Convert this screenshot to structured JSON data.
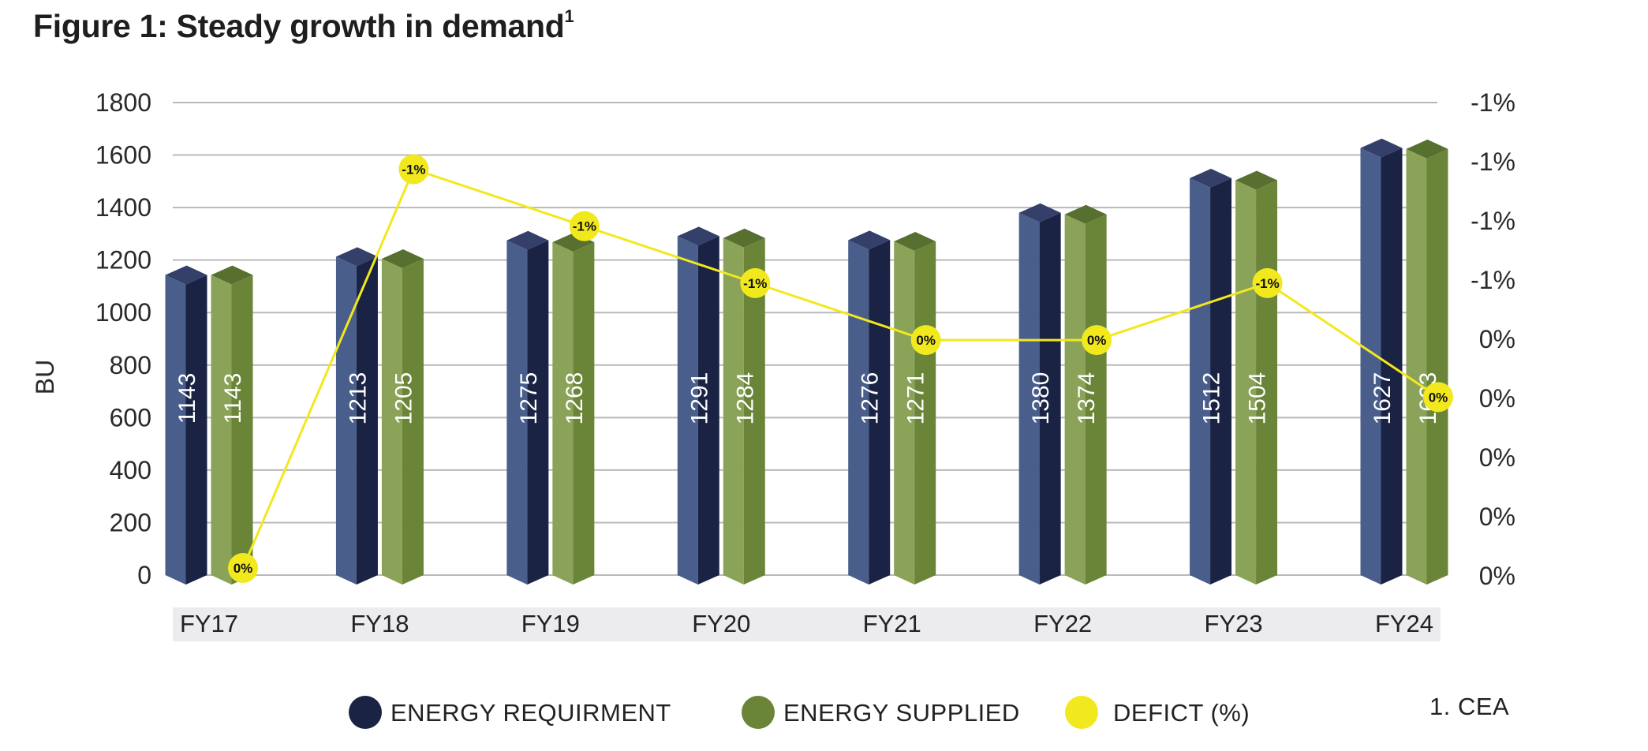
{
  "header": {
    "title": "Figure 1: Steady growth in demand",
    "title_sup": "1"
  },
  "footnote": "1. CEA",
  "chart_data": {
    "type": "bar",
    "title": "Figure 1: Steady growth in demand",
    "categories": [
      "FY17",
      "FY18",
      "FY19",
      "FY20",
      "FY21",
      "FY22",
      "FY23",
      "FY24"
    ],
    "ylabel": "BU",
    "ylim": [
      0,
      1800
    ],
    "yticks": [
      0,
      200,
      400,
      600,
      800,
      1000,
      1200,
      1400,
      1600,
      1800
    ],
    "y2_tick_labels": [
      "0%",
      "0%",
      "0%",
      "0%",
      "0%",
      "-1%",
      "-1%",
      "-1%",
      "-1%"
    ],
    "grid": true,
    "legend_position": "bottom",
    "series": [
      {
        "name": "ENERGY REQUIRMENT",
        "type": "bar",
        "color": "#4a5e8c",
        "values": [
          1143,
          1213,
          1275,
          1291,
          1276,
          1380,
          1512,
          1627
        ]
      },
      {
        "name": "ENERGY SUPPLIED",
        "type": "bar",
        "color": "#8aa359",
        "values": [
          1143,
          1205,
          1268,
          1284,
          1271,
          1374,
          1504,
          1623
        ]
      },
      {
        "name": "DEFICT (%)",
        "type": "line",
        "axis": "secondary",
        "color": "#f2e81e",
        "values": [
          0.0,
          -0.7,
          -0.6,
          -0.5,
          -0.4,
          -0.4,
          -0.5,
          -0.3
        ],
        "labels": [
          "0%",
          "-1%",
          "-1%",
          "-1%",
          "0%",
          "0%",
          "-1%",
          "0%"
        ]
      }
    ]
  },
  "colors": {
    "req_front": "#4a5e8c",
    "req_side": "#1a2344",
    "req_top": "#34406a",
    "sup_front": "#8aa359",
    "sup_side": "#6a8438",
    "sup_top": "#577030",
    "line": "#f2e81e",
    "grid": "#b9b9b9",
    "category_band": "#ececee"
  }
}
